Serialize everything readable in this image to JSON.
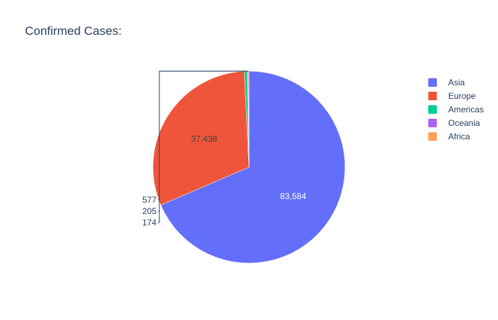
{
  "chart_data": {
    "type": "pie",
    "title": "Confirmed Cases:",
    "categories": [
      "Asia",
      "Europe",
      "Americas",
      "Oceania",
      "Africa"
    ],
    "values": [
      83584,
      37438,
      577,
      205,
      174
    ],
    "labels": [
      "83,584",
      "37,438",
      "577",
      "205",
      "174"
    ],
    "colors": [
      "#636efa",
      "#EF553B",
      "#00cc96",
      "#ab63fa",
      "#FFA15A"
    ],
    "legend_placement": "top-right",
    "direction": "clockwise",
    "start": "top"
  }
}
